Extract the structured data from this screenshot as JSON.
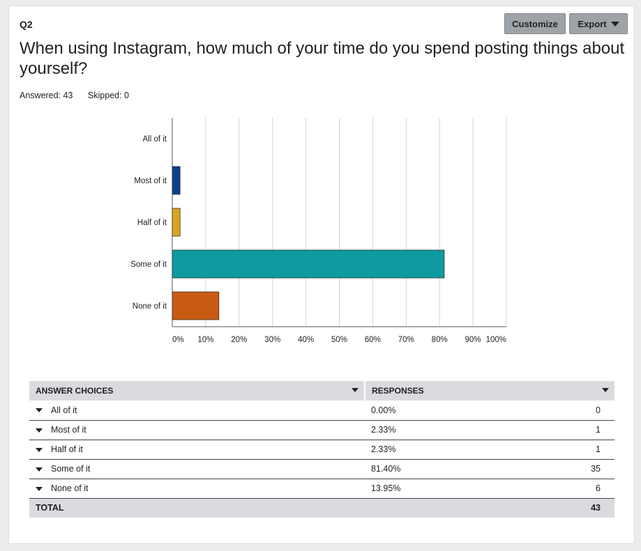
{
  "question": {
    "number": "Q2",
    "title": "When using Instagram, how much of your time do you spend posting things about yourself?",
    "answered": "Answered: 43",
    "skipped": "Skipped: 0"
  },
  "toolbar": {
    "customize_label": "Customize",
    "export_label": "Export"
  },
  "chart_data": {
    "type": "bar",
    "orientation": "horizontal",
    "categories": [
      "All of it",
      "Most of it",
      "Half of it",
      "Some of it",
      "None of it"
    ],
    "values": [
      0.0,
      2.33,
      2.33,
      81.4,
      13.95
    ],
    "colors": [
      "#1e5aa8",
      "#0f3f8c",
      "#d9a520",
      "#0e9aa0",
      "#c95a12"
    ],
    "xlim": [
      0,
      100
    ],
    "x_ticks": [
      "0%",
      "10%",
      "20%",
      "30%",
      "40%",
      "50%",
      "60%",
      "70%",
      "80%",
      "90%",
      "100%"
    ],
    "grid": true
  },
  "table": {
    "headers": [
      "ANSWER CHOICES",
      "RESPONSES"
    ],
    "rows": [
      {
        "choice": "All of it",
        "percent": "0.00%",
        "count": "0"
      },
      {
        "choice": "Most of it",
        "percent": "2.33%",
        "count": "1"
      },
      {
        "choice": "Half of it",
        "percent": "2.33%",
        "count": "1"
      },
      {
        "choice": "Some of it",
        "percent": "81.40%",
        "count": "35"
      },
      {
        "choice": "None of it",
        "percent": "13.95%",
        "count": "6"
      }
    ],
    "total_label": "TOTAL",
    "total_count": "43"
  }
}
